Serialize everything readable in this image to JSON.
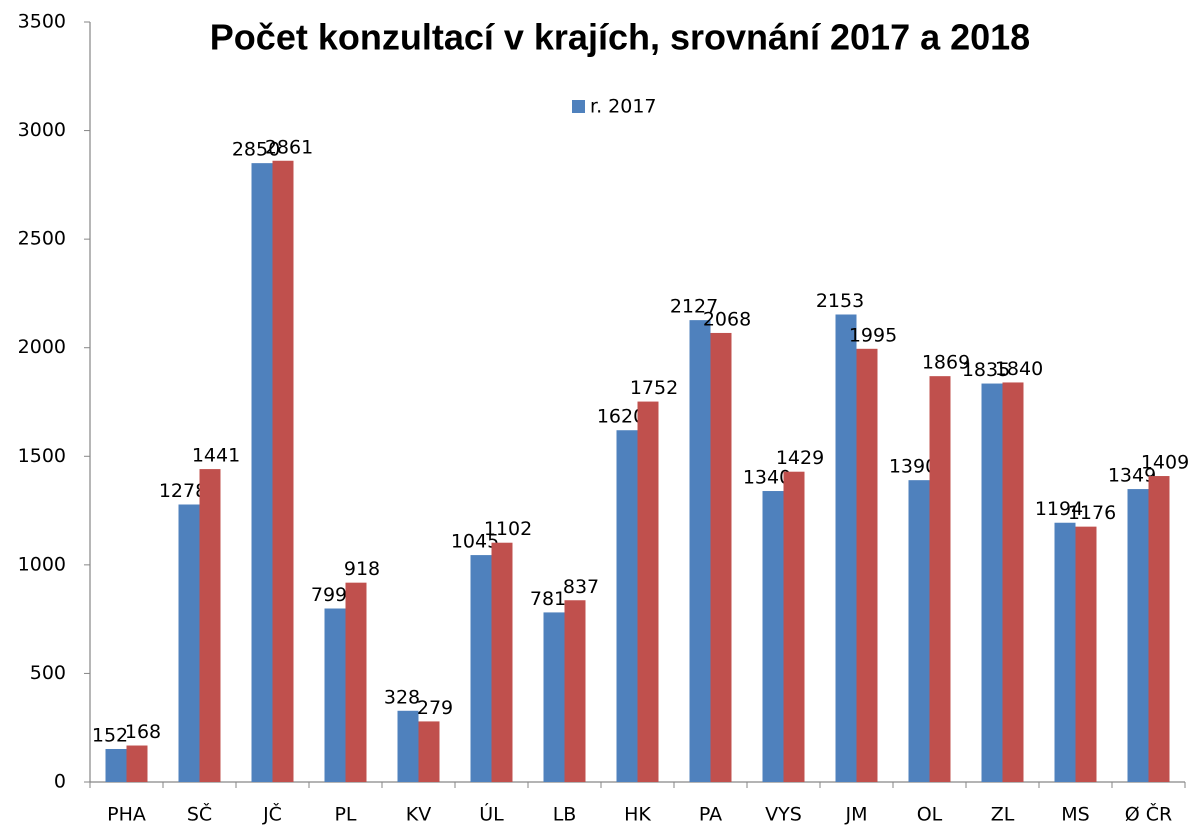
{
  "chart_data": {
    "type": "bar",
    "title": "Počet konzultací v krajích, srovnání 2017 a 2018",
    "categories": [
      "PHA",
      "SČ",
      "JČ",
      "PL",
      "KV",
      "ÚL",
      "LB",
      "HK",
      "PA",
      "VYS",
      "JM",
      "OL",
      "ZL",
      "MS",
      "Ø ČR"
    ],
    "series": [
      {
        "name": "r. 2017",
        "color": "#4f81bd",
        "values": [
          152,
          1278,
          2850,
          799,
          328,
          1045,
          781,
          1620,
          2127,
          1340,
          2153,
          1390,
          1835,
          1194,
          1349
        ]
      },
      {
        "color": "#c0504d",
        "values": [
          168,
          1441,
          2861,
          918,
          279,
          1102,
          837,
          1752,
          2068,
          1429,
          1995,
          1869,
          1840,
          1176,
          1409
        ]
      }
    ],
    "ylim": [
      0,
      3500
    ],
    "yticks": [
      0,
      500,
      1000,
      1500,
      2000,
      2500,
      3000,
      3500
    ],
    "grid": false,
    "legend": "top"
  }
}
